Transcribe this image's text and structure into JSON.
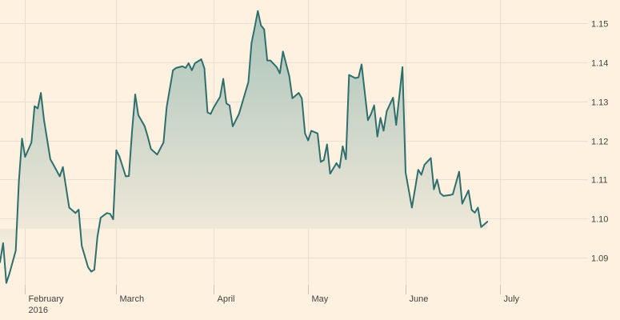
{
  "chart_data": {
    "type": "area",
    "title": "",
    "xlabel": "",
    "ylabel": "",
    "colors": {
      "line": "#2e6e6d",
      "area_top": "#a9c3b9",
      "area_bottom": "#fff1e0",
      "background": "#fff1e0"
    },
    "grid": true,
    "legend": "none",
    "x_start": "2016-01-25",
    "xlim": [
      "2016-01-24",
      "2016-07-29"
    ],
    "ylim": [
      1.074,
      1.156
    ],
    "y_ticks": [
      1.09,
      1.1,
      1.11,
      1.12,
      1.13,
      1.14,
      1.15
    ],
    "y_tick_labels": [
      "1.09",
      "1.10",
      "1.11",
      "1.12",
      "1.13",
      "1.14",
      "1.15"
    ],
    "x_ticks": [
      {
        "date": "2016-02-01",
        "label": "February",
        "sublabel": "2016"
      },
      {
        "date": "2016-03-01",
        "label": "March",
        "sublabel": ""
      },
      {
        "date": "2016-04-01",
        "label": "April",
        "sublabel": ""
      },
      {
        "date": "2016-05-01",
        "label": "May",
        "sublabel": ""
      },
      {
        "date": "2016-06-01",
        "label": "June",
        "sublabel": ""
      },
      {
        "date": "2016-07-01",
        "label": "July",
        "sublabel": ""
      }
    ],
    "series": [
      {
        "values": [
          [
            "2016-01-24",
            1.0888
          ],
          [
            "2016-01-25",
            1.0937
          ],
          [
            "2016-01-26",
            1.0835
          ],
          [
            "2016-01-27",
            1.0859
          ],
          [
            "2016-01-28",
            1.0888
          ],
          [
            "2016-01-29",
            1.0918
          ],
          [
            "2016-01-30",
            1.1095
          ],
          [
            "2016-01-31",
            1.1205
          ],
          [
            "2016-02-01",
            1.1158
          ],
          [
            "2016-02-03",
            1.1195
          ],
          [
            "2016-02-04",
            1.1288
          ],
          [
            "2016-02-05",
            1.1282
          ],
          [
            "2016-02-06",
            1.1322
          ],
          [
            "2016-02-07",
            1.1253
          ],
          [
            "2016-02-09",
            1.1152
          ],
          [
            "2016-02-10",
            1.1138
          ],
          [
            "2016-02-12",
            1.1108
          ],
          [
            "2016-02-13",
            1.1132
          ],
          [
            "2016-02-15",
            1.1028
          ],
          [
            "2016-02-17",
            1.1014
          ],
          [
            "2016-02-18",
            1.1023
          ],
          [
            "2016-02-19",
            1.093
          ],
          [
            "2016-02-21",
            1.0875
          ],
          [
            "2016-02-22",
            1.0864
          ],
          [
            "2016-02-23",
            1.0869
          ],
          [
            "2016-02-24",
            1.0953
          ],
          [
            "2016-02-25",
            1.1002
          ],
          [
            "2016-02-27",
            1.1014
          ],
          [
            "2016-02-28",
            1.1012
          ],
          [
            "2016-02-29",
            1.0998
          ],
          [
            "2016-03-01",
            1.1175
          ],
          [
            "2016-03-02",
            1.1158
          ],
          [
            "2016-03-04",
            1.1108
          ],
          [
            "2016-03-05",
            1.1109
          ],
          [
            "2016-03-06",
            1.1225
          ],
          [
            "2016-03-07",
            1.1318
          ],
          [
            "2016-03-08",
            1.1265
          ],
          [
            "2016-03-10",
            1.1237
          ],
          [
            "2016-03-11",
            1.121
          ],
          [
            "2016-03-12",
            1.1178
          ],
          [
            "2016-03-14",
            1.1164
          ],
          [
            "2016-03-16",
            1.1195
          ],
          [
            "2016-03-17",
            1.1285
          ],
          [
            "2016-03-19",
            1.138
          ],
          [
            "2016-03-20",
            1.1386
          ],
          [
            "2016-03-22",
            1.139
          ],
          [
            "2016-03-23",
            1.1386
          ],
          [
            "2016-03-24",
            1.1398
          ],
          [
            "2016-03-25",
            1.138
          ],
          [
            "2016-03-26",
            1.1398
          ],
          [
            "2016-03-28",
            1.1408
          ],
          [
            "2016-03-29",
            1.1385
          ],
          [
            "2016-03-30",
            1.1272
          ],
          [
            "2016-03-31",
            1.1268
          ],
          [
            "2016-04-01",
            1.1285
          ],
          [
            "2016-04-03",
            1.1312
          ],
          [
            "2016-04-04",
            1.1358
          ],
          [
            "2016-04-05",
            1.1295
          ],
          [
            "2016-04-06",
            1.129
          ],
          [
            "2016-04-07",
            1.1236
          ],
          [
            "2016-04-09",
            1.1268
          ],
          [
            "2016-04-10",
            1.1295
          ],
          [
            "2016-04-12",
            1.135
          ],
          [
            "2016-04-13",
            1.145
          ],
          [
            "2016-04-14",
            1.149
          ],
          [
            "2016-04-15",
            1.1532
          ],
          [
            "2016-04-16",
            1.1495
          ],
          [
            "2016-04-17",
            1.1485
          ],
          [
            "2016-04-18",
            1.1405
          ],
          [
            "2016-04-19",
            1.1405
          ],
          [
            "2016-04-21",
            1.1388
          ],
          [
            "2016-04-22",
            1.1372
          ],
          [
            "2016-04-23",
            1.1428
          ],
          [
            "2016-04-25",
            1.1365
          ],
          [
            "2016-04-26",
            1.1308
          ],
          [
            "2016-04-28",
            1.1322
          ],
          [
            "2016-04-29",
            1.1308
          ],
          [
            "2016-04-30",
            1.1218
          ],
          [
            "2016-05-01",
            1.12
          ],
          [
            "2016-05-02",
            1.1225
          ],
          [
            "2016-05-04",
            1.1218
          ],
          [
            "2016-05-05",
            1.1145
          ],
          [
            "2016-05-06",
            1.115
          ],
          [
            "2016-05-07",
            1.119
          ],
          [
            "2016-05-08",
            1.1115
          ],
          [
            "2016-05-10",
            1.1142
          ],
          [
            "2016-05-11",
            1.113
          ],
          [
            "2016-05-12",
            1.1185
          ],
          [
            "2016-05-13",
            1.1152
          ],
          [
            "2016-05-14",
            1.1368
          ],
          [
            "2016-05-16",
            1.136
          ],
          [
            "2016-05-17",
            1.1362
          ],
          [
            "2016-05-18",
            1.1395
          ],
          [
            "2016-05-20",
            1.1252
          ],
          [
            "2016-05-21",
            1.1268
          ],
          [
            "2016-05-22",
            1.129
          ],
          [
            "2016-05-23",
            1.121
          ],
          [
            "2016-05-24",
            1.1258
          ],
          [
            "2016-05-25",
            1.1225
          ],
          [
            "2016-05-26",
            1.1275
          ],
          [
            "2016-05-28",
            1.131
          ],
          [
            "2016-05-29",
            1.124
          ],
          [
            "2016-05-31",
            1.1388
          ],
          [
            "2016-06-01",
            1.1118
          ],
          [
            "2016-06-03",
            1.1028
          ],
          [
            "2016-06-05",
            1.1125
          ],
          [
            "2016-06-06",
            1.1112
          ],
          [
            "2016-06-07",
            1.1138
          ],
          [
            "2016-06-09",
            1.1155
          ],
          [
            "2016-06-10",
            1.1075
          ],
          [
            "2016-06-11",
            1.11
          ],
          [
            "2016-06-12",
            1.1065
          ],
          [
            "2016-06-13",
            1.1058
          ],
          [
            "2016-06-15",
            1.106
          ],
          [
            "2016-06-16",
            1.1062
          ],
          [
            "2016-06-18",
            1.112
          ],
          [
            "2016-06-19",
            1.1038
          ],
          [
            "2016-06-21",
            1.1072
          ],
          [
            "2016-06-22",
            1.1022
          ],
          [
            "2016-06-23",
            1.1015
          ],
          [
            "2016-06-24",
            1.1028
          ],
          [
            "2016-06-25",
            1.0978
          ],
          [
            "2016-06-27",
            1.0992
          ]
        ]
      }
    ]
  }
}
